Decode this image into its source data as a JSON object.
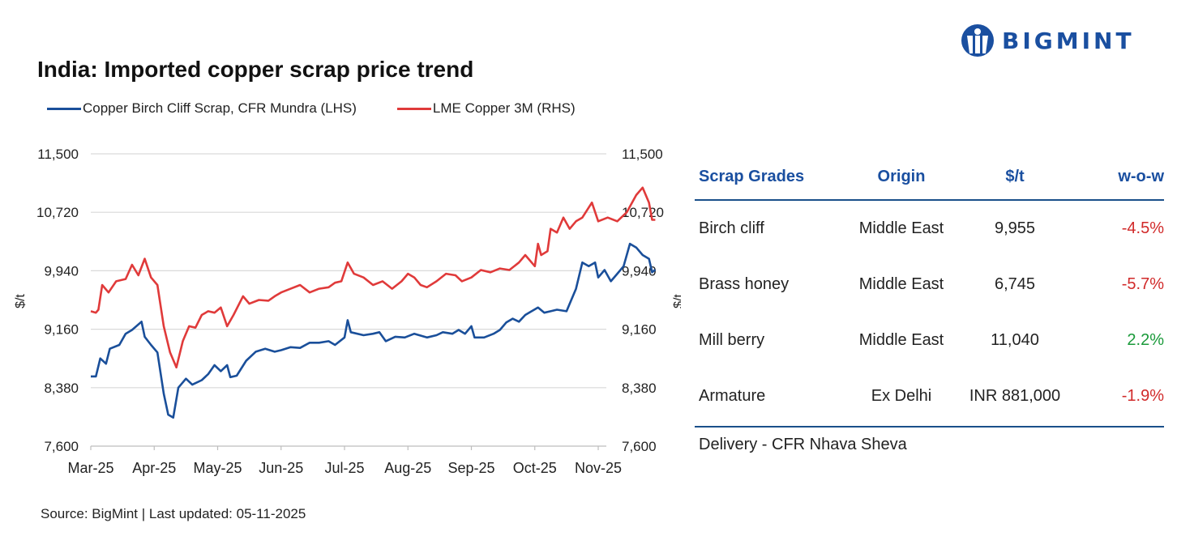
{
  "title": "India: Imported copper scrap price trend",
  "source": "Source: BigMint | Last updated: 05-11-2025",
  "logo": {
    "text": "BIGMINT",
    "color": "#1a4fa0"
  },
  "chart_data": {
    "type": "line",
    "title": "India: Imported copper scrap price trend",
    "ylabel_left": "$/t",
    "ylabel_right": "$/t",
    "ylim_left": [
      7600,
      11500
    ],
    "ylim_right": [
      7600,
      11500
    ],
    "yticks_left": [
      "11,500",
      "10,720",
      "9,940",
      "9,160",
      "8,380",
      "7,600"
    ],
    "yticks_right": [
      "11,500",
      "10,720",
      "9,940",
      "9,160",
      "8,380",
      "7,600"
    ],
    "ytick_values": [
      11500,
      10720,
      9940,
      9160,
      8380,
      7600
    ],
    "xticks": [
      "Mar-25",
      "Apr-25",
      "May-25",
      "Jun-25",
      "Jul-25",
      "Aug-25",
      "Sep-25",
      "Oct-25",
      "Nov-25"
    ],
    "grid": true,
    "legend_position": "top",
    "series": [
      {
        "name": "Copper Birch Cliff Scrap, CFR Mundra (LHS)",
        "color": "#1a4f9a",
        "axis": "left",
        "points": [
          [
            0,
            8530
          ],
          [
            0.08,
            8530
          ],
          [
            0.15,
            8770
          ],
          [
            0.24,
            8700
          ],
          [
            0.3,
            8900
          ],
          [
            0.45,
            8950
          ],
          [
            0.55,
            9100
          ],
          [
            0.65,
            9150
          ],
          [
            0.8,
            9260
          ],
          [
            0.85,
            9060
          ],
          [
            0.95,
            8950
          ],
          [
            1.05,
            8850
          ],
          [
            1.15,
            8300
          ],
          [
            1.22,
            8020
          ],
          [
            1.3,
            7980
          ],
          [
            1.38,
            8380
          ],
          [
            1.5,
            8500
          ],
          [
            1.6,
            8420
          ],
          [
            1.75,
            8480
          ],
          [
            1.85,
            8560
          ],
          [
            1.95,
            8680
          ],
          [
            2.05,
            8600
          ],
          [
            2.15,
            8680
          ],
          [
            2.2,
            8520
          ],
          [
            2.3,
            8540
          ],
          [
            2.45,
            8740
          ],
          [
            2.6,
            8860
          ],
          [
            2.75,
            8900
          ],
          [
            2.9,
            8860
          ],
          [
            3.0,
            8880
          ],
          [
            3.15,
            8920
          ],
          [
            3.3,
            8910
          ],
          [
            3.45,
            8980
          ],
          [
            3.6,
            8980
          ],
          [
            3.75,
            9000
          ],
          [
            3.85,
            8950
          ],
          [
            4.0,
            9050
          ],
          [
            4.05,
            9280
          ],
          [
            4.1,
            9120
          ],
          [
            4.3,
            9080
          ],
          [
            4.45,
            9100
          ],
          [
            4.55,
            9120
          ],
          [
            4.65,
            9000
          ],
          [
            4.8,
            9060
          ],
          [
            4.95,
            9050
          ],
          [
            5.1,
            9100
          ],
          [
            5.3,
            9050
          ],
          [
            5.45,
            9080
          ],
          [
            5.55,
            9120
          ],
          [
            5.7,
            9100
          ],
          [
            5.8,
            9150
          ],
          [
            5.9,
            9100
          ],
          [
            6.0,
            9200
          ],
          [
            6.05,
            9050
          ],
          [
            6.2,
            9050
          ],
          [
            6.35,
            9100
          ],
          [
            6.45,
            9150
          ],
          [
            6.55,
            9250
          ],
          [
            6.65,
            9300
          ],
          [
            6.75,
            9260
          ],
          [
            6.85,
            9350
          ],
          [
            6.95,
            9400
          ],
          [
            7.05,
            9450
          ],
          [
            7.15,
            9380
          ],
          [
            7.25,
            9400
          ],
          [
            7.35,
            9420
          ],
          [
            7.5,
            9400
          ],
          [
            7.65,
            9700
          ],
          [
            7.75,
            10050
          ],
          [
            7.85,
            10000
          ],
          [
            7.95,
            10050
          ],
          [
            8.0,
            9850
          ],
          [
            8.1,
            9950
          ],
          [
            8.2,
            9800
          ],
          [
            8.3,
            9900
          ],
          [
            8.4,
            10000
          ],
          [
            8.5,
            10300
          ],
          [
            8.6,
            10250
          ],
          [
            8.7,
            10150
          ],
          [
            8.8,
            10100
          ],
          [
            8.85,
            9920
          ],
          [
            8.9,
            9955
          ]
        ]
      },
      {
        "name": "LME Copper 3M (RHS)",
        "color": "#e03a3a",
        "axis": "right",
        "points": [
          [
            0,
            9400
          ],
          [
            0.08,
            9380
          ],
          [
            0.12,
            9420
          ],
          [
            0.18,
            9750
          ],
          [
            0.28,
            9650
          ],
          [
            0.4,
            9800
          ],
          [
            0.55,
            9830
          ],
          [
            0.65,
            10020
          ],
          [
            0.75,
            9880
          ],
          [
            0.85,
            10100
          ],
          [
            0.95,
            9850
          ],
          [
            1.05,
            9750
          ],
          [
            1.15,
            9200
          ],
          [
            1.25,
            8850
          ],
          [
            1.35,
            8650
          ],
          [
            1.45,
            9000
          ],
          [
            1.55,
            9200
          ],
          [
            1.65,
            9180
          ],
          [
            1.75,
            9350
          ],
          [
            1.85,
            9400
          ],
          [
            1.95,
            9380
          ],
          [
            2.05,
            9450
          ],
          [
            2.15,
            9200
          ],
          [
            2.25,
            9350
          ],
          [
            2.4,
            9600
          ],
          [
            2.5,
            9500
          ],
          [
            2.65,
            9550
          ],
          [
            2.8,
            9540
          ],
          [
            2.9,
            9600
          ],
          [
            3.0,
            9650
          ],
          [
            3.15,
            9700
          ],
          [
            3.3,
            9750
          ],
          [
            3.45,
            9650
          ],
          [
            3.6,
            9700
          ],
          [
            3.75,
            9720
          ],
          [
            3.85,
            9780
          ],
          [
            3.95,
            9800
          ],
          [
            4.05,
            10050
          ],
          [
            4.15,
            9900
          ],
          [
            4.3,
            9850
          ],
          [
            4.45,
            9750
          ],
          [
            4.6,
            9800
          ],
          [
            4.75,
            9700
          ],
          [
            4.9,
            9800
          ],
          [
            5.0,
            9900
          ],
          [
            5.1,
            9850
          ],
          [
            5.2,
            9750
          ],
          [
            5.3,
            9720
          ],
          [
            5.45,
            9800
          ],
          [
            5.6,
            9900
          ],
          [
            5.75,
            9880
          ],
          [
            5.85,
            9800
          ],
          [
            6.0,
            9850
          ],
          [
            6.15,
            9950
          ],
          [
            6.3,
            9920
          ],
          [
            6.45,
            9970
          ],
          [
            6.6,
            9950
          ],
          [
            6.75,
            10050
          ],
          [
            6.85,
            10150
          ],
          [
            7.0,
            10000
          ],
          [
            7.05,
            10300
          ],
          [
            7.1,
            10150
          ],
          [
            7.2,
            10200
          ],
          [
            7.25,
            10500
          ],
          [
            7.35,
            10450
          ],
          [
            7.45,
            10650
          ],
          [
            7.55,
            10500
          ],
          [
            7.65,
            10600
          ],
          [
            7.75,
            10650
          ],
          [
            7.9,
            10850
          ],
          [
            8.0,
            10600
          ],
          [
            8.15,
            10650
          ],
          [
            8.3,
            10600
          ],
          [
            8.45,
            10720
          ],
          [
            8.6,
            10950
          ],
          [
            8.7,
            11050
          ],
          [
            8.8,
            10850
          ],
          [
            8.85,
            10620
          ],
          [
            8.9,
            10620
          ]
        ]
      }
    ]
  },
  "table": {
    "headers": [
      "Scrap Grades",
      "Origin",
      "$/t",
      "w-o-w"
    ],
    "rows": [
      {
        "grade": "Birch cliff",
        "origin": "Middle East",
        "price": "9,955",
        "wow": "-4.5%"
      },
      {
        "grade": "Brass honey",
        "origin": "Middle East",
        "price": "6,745",
        "wow": "-5.7%"
      },
      {
        "grade": "Mill berry",
        "origin": "Middle East",
        "price": "11,040",
        "wow": "2.2%"
      },
      {
        "grade": "Armature",
        "origin": "Ex Delhi",
        "price": "INR 881,000",
        "wow": "-1.9%"
      }
    ],
    "footer": "Delivery - CFR Nhava Sheva"
  }
}
